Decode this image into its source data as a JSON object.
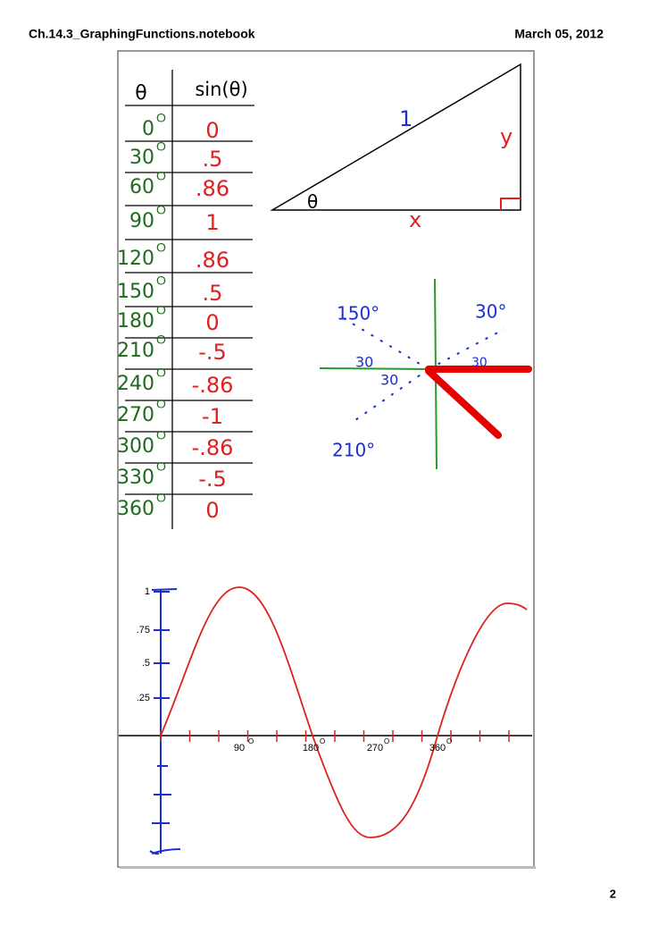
{
  "header": {
    "title": "Ch.14.3_GraphingFunctions.notebook",
    "date": "March 05, 2012"
  },
  "table": {
    "headers": [
      "θ",
      "sin(θ)"
    ],
    "degree_mark": "O",
    "rows": [
      [
        "0",
        "0"
      ],
      [
        "30",
        ".5"
      ],
      [
        "60",
        ".86"
      ],
      [
        "90",
        "1"
      ],
      [
        "120",
        ".86"
      ],
      [
        "150",
        ".5"
      ],
      [
        "180",
        "0"
      ],
      [
        "210",
        "-.5"
      ],
      [
        "240",
        "-.86"
      ],
      [
        "270",
        "-1"
      ],
      [
        "300",
        "-.86"
      ],
      [
        "330",
        "-.5"
      ],
      [
        "360",
        "0"
      ]
    ]
  },
  "triangle": {
    "hypotenuse": "1",
    "opposite": "y",
    "adjacent": "x",
    "angle": "θ"
  },
  "unit_circle": {
    "labels": [
      "150°",
      "30°",
      "30",
      "30",
      "30",
      "210°"
    ]
  },
  "graph": {
    "yticks": [
      "1",
      ".75",
      ".5",
      ".25"
    ],
    "xticks": [
      "90",
      "180",
      "270",
      "360"
    ]
  },
  "footer": {
    "page": "2"
  }
}
